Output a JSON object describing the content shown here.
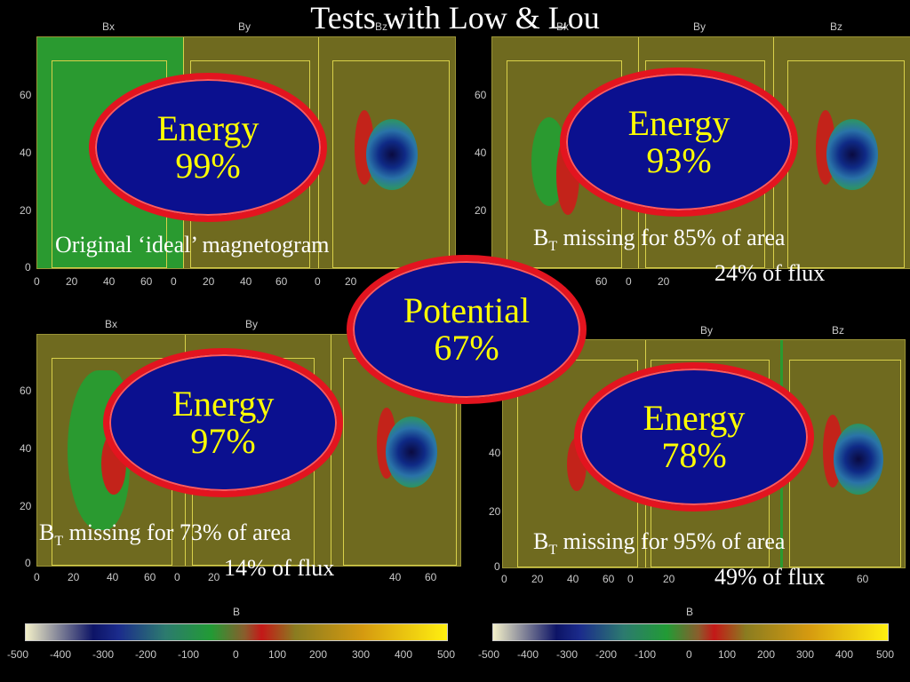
{
  "title": "Tests with Low & Lou",
  "panel_labels": {
    "bx": "Bx",
    "by": "By",
    "bz": "Bz"
  },
  "y_ticks": [
    "60",
    "40",
    "20",
    "0"
  ],
  "x_ticks": [
    "0",
    "20",
    "40",
    "60"
  ],
  "colorbar": {
    "label": "B",
    "ticks": [
      "-500",
      "-400",
      "-300",
      "-200",
      "-100",
      "0",
      "100",
      "200",
      "300",
      "400",
      "500"
    ]
  },
  "ellipses": {
    "top_left": {
      "line1": "Energy",
      "line2": "99%"
    },
    "top_right": {
      "line1": "Energy",
      "line2": "93%"
    },
    "center": {
      "line1": "Potential",
      "line2": "67%"
    },
    "bottom_left": {
      "line1": "Energy",
      "line2": "97%"
    },
    "bottom_right": {
      "line1": "Energy",
      "line2": "78%"
    }
  },
  "notes": {
    "top_left": "Original ‘ideal’ magnetogram",
    "top_right_1_pre": "B",
    "top_right_1_sub": "T",
    "top_right_1_post": " missing for 85% of area",
    "top_right_2": "24% of flux",
    "bottom_left_1_pre": "B",
    "bottom_left_1_sub": "T",
    "bottom_left_1_post": " missing for 73% of area",
    "bottom_left_2": "14% of flux",
    "bottom_right_1_pre": "B",
    "bottom_right_1_sub": "T",
    "bottom_right_1_post": " missing for 95% of area",
    "bottom_right_2": "49% of flux"
  },
  "colors": {
    "ellipse_fill": "#0b108f",
    "ellipse_border": "#e3141f",
    "ellipse_text": "#ffff00",
    "plot_bg": "#6f6a1f"
  }
}
